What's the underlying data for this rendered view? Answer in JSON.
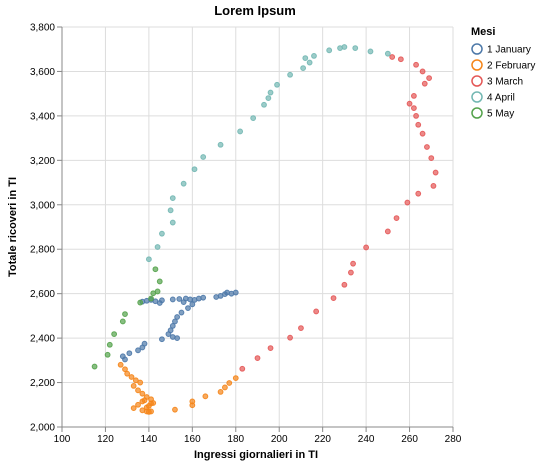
{
  "chart_data": {
    "type": "scatter",
    "title": "Lorem Ipsum",
    "xlabel": "Ingressi giornalieri in TI",
    "ylabel": "Totale ricoveri in TI",
    "xlim": [
      100,
      280
    ],
    "ylim": [
      2000,
      3800
    ],
    "xticks": [
      100,
      120,
      140,
      160,
      180,
      200,
      220,
      240,
      260,
      280
    ],
    "yticks": [
      2000,
      2200,
      2400,
      2600,
      2800,
      3000,
      3200,
      3400,
      3600,
      3800
    ],
    "xtick_labels": [
      "100",
      "120",
      "140",
      "160",
      "180",
      "200",
      "220",
      "240",
      "260",
      "280"
    ],
    "ytick_labels": [
      "2,000",
      "2,200",
      "2,400",
      "2,600",
      "2,800",
      "3,000",
      "3,200",
      "3,400",
      "3,600",
      "3,800"
    ],
    "grid": true,
    "legend_title": "Mesi",
    "legend_position": "top-right",
    "series": [
      {
        "name": "1 January",
        "color": "#4c78a8",
        "points": [
          [
            180,
            2605
          ],
          [
            178,
            2600
          ],
          [
            176,
            2605
          ],
          [
            175,
            2598
          ],
          [
            173,
            2590
          ],
          [
            171,
            2585
          ],
          [
            165,
            2582
          ],
          [
            163,
            2578
          ],
          [
            161,
            2572
          ],
          [
            159,
            2574
          ],
          [
            157,
            2578
          ],
          [
            154,
            2576
          ],
          [
            151,
            2574
          ],
          [
            146,
            2570
          ],
          [
            143,
            2566
          ],
          [
            141,
            2572
          ],
          [
            139,
            2568
          ],
          [
            137,
            2564
          ],
          [
            145,
            2558
          ],
          [
            156,
            2562
          ],
          [
            160,
            2552
          ],
          [
            158,
            2535
          ],
          [
            155,
            2515
          ],
          [
            153,
            2495
          ],
          [
            152,
            2475
          ],
          [
            151,
            2455
          ],
          [
            150,
            2435
          ],
          [
            149,
            2418
          ],
          [
            151,
            2405
          ],
          [
            153,
            2400
          ],
          [
            146,
            2395
          ],
          [
            138,
            2375
          ],
          [
            137,
            2358
          ],
          [
            135,
            2345
          ],
          [
            131,
            2332
          ],
          [
            128,
            2318
          ],
          [
            129,
            2304
          ]
        ]
      },
      {
        "name": "2 February",
        "color": "#f58518",
        "points": [
          [
            127,
            2280
          ],
          [
            129,
            2260
          ],
          [
            130,
            2240
          ],
          [
            132,
            2225
          ],
          [
            134,
            2210
          ],
          [
            136,
            2200
          ],
          [
            133,
            2185
          ],
          [
            135,
            2165
          ],
          [
            137,
            2150
          ],
          [
            139,
            2135
          ],
          [
            137,
            2115
          ],
          [
            135,
            2100
          ],
          [
            133,
            2085
          ],
          [
            137,
            2075
          ],
          [
            139,
            2070
          ],
          [
            140,
            2095
          ],
          [
            142,
            2108
          ],
          [
            138,
            2120
          ],
          [
            140,
            2068
          ],
          [
            141,
            2070
          ],
          [
            139,
            2088
          ],
          [
            141,
            2106
          ],
          [
            141,
            2125
          ],
          [
            152,
            2078
          ],
          [
            160,
            2098
          ],
          [
            160,
            2115
          ],
          [
            166,
            2138
          ],
          [
            173,
            2158
          ],
          [
            175,
            2178
          ],
          [
            177,
            2198
          ],
          [
            180,
            2220
          ]
        ]
      },
      {
        "name": "3 March",
        "color": "#e45756",
        "points": [
          [
            183,
            2262
          ],
          [
            190,
            2310
          ],
          [
            196,
            2355
          ],
          [
            205,
            2402
          ],
          [
            210,
            2445
          ],
          [
            217,
            2520
          ],
          [
            225,
            2580
          ],
          [
            230,
            2640
          ],
          [
            233,
            2695
          ],
          [
            234,
            2735
          ],
          [
            240,
            2808
          ],
          [
            250,
            2880
          ],
          [
            254,
            2940
          ],
          [
            259,
            3010
          ],
          [
            264,
            3050
          ],
          [
            271,
            3085
          ],
          [
            272,
            3145
          ],
          [
            270,
            3210
          ],
          [
            268,
            3260
          ],
          [
            266,
            3320
          ],
          [
            264,
            3360
          ],
          [
            263,
            3400
          ],
          [
            262,
            3435
          ],
          [
            260,
            3455
          ],
          [
            262,
            3490
          ],
          [
            267,
            3545
          ],
          [
            269,
            3570
          ],
          [
            266,
            3600
          ],
          [
            263,
            3630
          ],
          [
            256,
            3655
          ],
          [
            252,
            3665
          ]
        ]
      },
      {
        "name": "4 April",
        "color": "#72b7b2",
        "points": [
          [
            250,
            3680
          ],
          [
            242,
            3690
          ],
          [
            235,
            3705
          ],
          [
            230,
            3710
          ],
          [
            228,
            3705
          ],
          [
            223,
            3695
          ],
          [
            216,
            3670
          ],
          [
            212,
            3660
          ],
          [
            214,
            3640
          ],
          [
            211,
            3615
          ],
          [
            205,
            3585
          ],
          [
            199,
            3540
          ],
          [
            196,
            3505
          ],
          [
            195,
            3480
          ],
          [
            193,
            3450
          ],
          [
            188,
            3390
          ],
          [
            182,
            3330
          ],
          [
            173,
            3270
          ],
          [
            165,
            3215
          ],
          [
            161,
            3160
          ],
          [
            156,
            3095
          ],
          [
            151,
            3030
          ],
          [
            150,
            2975
          ],
          [
            151,
            2920
          ],
          [
            146,
            2870
          ],
          [
            144,
            2810
          ],
          [
            140,
            2755
          ]
        ]
      },
      {
        "name": "5 May",
        "color": "#54a24b",
        "points": [
          [
            143,
            2710
          ],
          [
            145,
            2655
          ],
          [
            144,
            2610
          ],
          [
            142,
            2602
          ],
          [
            141,
            2578
          ],
          [
            136,
            2560
          ],
          [
            129,
            2508
          ],
          [
            128,
            2475
          ],
          [
            124,
            2418
          ],
          [
            122,
            2370
          ],
          [
            121,
            2325
          ],
          [
            115,
            2272
          ]
        ]
      }
    ]
  }
}
